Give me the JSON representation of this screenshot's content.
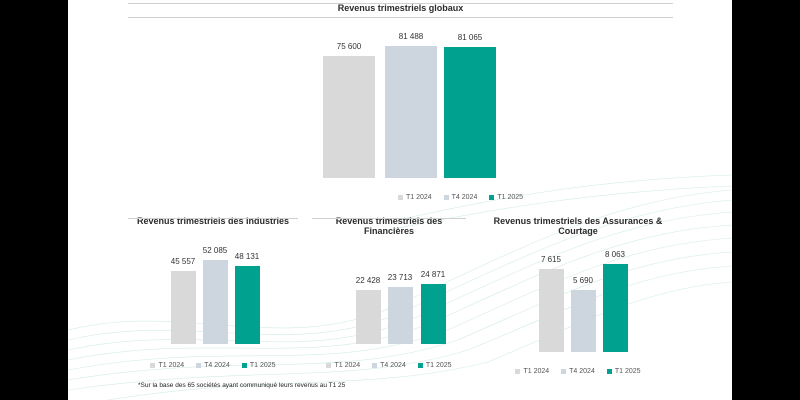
{
  "colors": {
    "t1_2024": "#d9d9d9",
    "t4_2024": "#cdd5de",
    "t1_2025": "#00a28f"
  },
  "footnote": "*Sur la base des 65 sociétés ayant communiqué leurs revenus au T1 25",
  "chart_data": [
    {
      "type": "bar",
      "title": "Revenus trimestriels globaux",
      "categories": [
        "T1 2024",
        "T4 2024",
        "T1 2025"
      ],
      "values": [
        75600,
        81488,
        81065
      ],
      "value_labels": [
        "75 600",
        "81 488",
        "81 065"
      ],
      "legend_position": "bottom",
      "grid": false
    },
    {
      "type": "bar",
      "title": "Revenus trimestriels des Industries",
      "categories": [
        "T1 2024",
        "T4 2024",
        "T1 2025"
      ],
      "values": [
        45557,
        52085,
        48131
      ],
      "value_labels": [
        "45 557",
        "52 085",
        "48 131"
      ],
      "legend_position": "bottom",
      "grid": false
    },
    {
      "type": "bar",
      "title": "Revenus trimestriels des Financières",
      "categories": [
        "T1 2024",
        "T4 2024",
        "T1 2025"
      ],
      "values": [
        22428,
        23713,
        24871
      ],
      "value_labels": [
        "22 428",
        "23 713",
        "24 871"
      ],
      "legend_position": "bottom",
      "grid": false
    },
    {
      "type": "bar",
      "title": "Revenus trimestriels des Assurances & Courtage",
      "categories": [
        "T1 2024",
        "T4 2024",
        "T1 2025"
      ],
      "values": [
        7615,
        5690,
        8063
      ],
      "value_labels": [
        "7 615",
        "5 690",
        "8 063"
      ],
      "legend_position": "bottom",
      "grid": false
    }
  ]
}
